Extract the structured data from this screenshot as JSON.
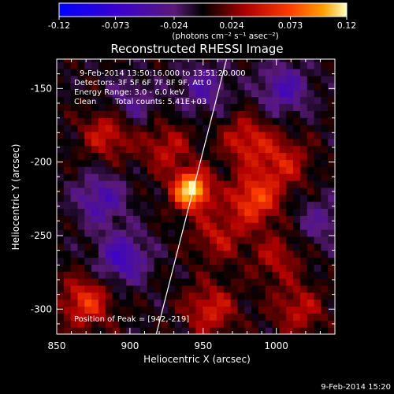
{
  "chart_data": {
    "type": "heatmap",
    "title": "Reconstructed RHESSI Image",
    "xlabel": "Heliocentric X (arcsec)",
    "ylabel": "Heliocentric Y (arcsec)",
    "xlim": [
      850,
      1040
    ],
    "ylim": [
      -317,
      -130
    ],
    "x_ticks": [
      850,
      900,
      950,
      1000
    ],
    "y_ticks": [
      -300,
      -250,
      -200,
      -150
    ],
    "colorbar": {
      "label": "(photons cm⁻² s⁻¹ asec⁻²)",
      "min": -0.12,
      "max": 0.12,
      "ticks": [
        "-0.12",
        "-0.073",
        "-0.024",
        "0.024",
        "0.073",
        "0.12"
      ]
    },
    "annotations": {
      "time_range": "9-Feb-2014 13:50:16.000 to 13:51:20.000",
      "detectors": "Detectors: 3F 5F 6F 7F 8F 9F, Att 0",
      "energy_range": "Energy Range: 3.0 - 6.0 keV",
      "method": "Clean",
      "total_counts": "Total counts: 5.41E+03",
      "peak": "Position of Peak = [942,-219]"
    },
    "peak_position": [
      942,
      -219
    ],
    "limb_line": [
      [
        918,
        -317
      ],
      [
        966,
        -130
      ]
    ],
    "features": [
      {
        "x": 942,
        "y": -219,
        "value": 0.12
      },
      {
        "x": 985,
        "y": -225,
        "value": 0.07
      },
      {
        "x": 980,
        "y": -185,
        "value": 0.05
      },
      {
        "x": 1005,
        "y": -200,
        "value": 0.045
      },
      {
        "x": 925,
        "y": -190,
        "value": 0.04
      },
      {
        "x": 885,
        "y": -180,
        "value": 0.05
      },
      {
        "x": 960,
        "y": -250,
        "value": 0.04
      },
      {
        "x": 1000,
        "y": -265,
        "value": 0.035
      },
      {
        "x": 1015,
        "y": -300,
        "value": 0.04
      },
      {
        "x": 870,
        "y": -295,
        "value": 0.06
      },
      {
        "x": 955,
        "y": -300,
        "value": 0.05
      },
      {
        "x": 950,
        "y": -150,
        "value": -0.04
      },
      {
        "x": 1005,
        "y": -150,
        "value": -0.05
      },
      {
        "x": 880,
        "y": -225,
        "value": -0.05
      },
      {
        "x": 895,
        "y": -265,
        "value": -0.06
      },
      {
        "x": 900,
        "y": -160,
        "value": -0.035
      },
      {
        "x": 1030,
        "y": -240,
        "value": -0.03
      }
    ]
  },
  "footer": {
    "timestamp": "9-Feb-2014 15:20"
  }
}
